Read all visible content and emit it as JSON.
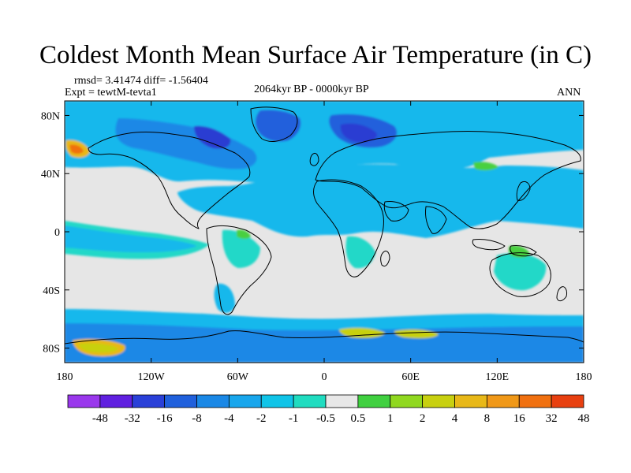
{
  "title": "Coldest Month Mean Surface Air Temperature (in C)",
  "stats": "rmsd= 3.41474 diff= -1.56404",
  "expt": "Expt = tewtM-tevta1",
  "period": "2064kyr BP - 0000kyr BP",
  "season": "ANN",
  "lat_ticks": [
    "80N",
    "40N",
    "0",
    "40S",
    "80S"
  ],
  "lat_values": [
    80,
    40,
    0,
    -40,
    -80
  ],
  "lon_ticks": [
    "180",
    "120W",
    "60W",
    "0",
    "60E",
    "120E",
    "180"
  ],
  "lon_values": [
    -180,
    -120,
    -60,
    0,
    60,
    120,
    180
  ],
  "lat_range": [
    -90,
    90
  ],
  "lon_range": [
    -180,
    180
  ],
  "colorbar": {
    "labels": [
      "-48",
      "-32",
      "-16",
      "-8",
      "-4",
      "-2",
      "-1",
      "-0.5",
      "0.5",
      "1",
      "2",
      "4",
      "8",
      "16",
      "32",
      "48"
    ],
    "colors": [
      "#9a38ec",
      "#6020e0",
      "#2a40d8",
      "#2060dc",
      "#1a88e6",
      "#18a6ec",
      "#10c4e8",
      "#20dcc0",
      "#e8e8e8",
      "#40d040",
      "#90d820",
      "#c8d010",
      "#e8b818",
      "#f09818",
      "#f07010",
      "#e84010"
    ]
  },
  "colors": {
    "nochange": "#e6e6e6",
    "cool_light": "#20d8c8",
    "cool_mid": "#18b8ec",
    "cool_deep": "#1a88e6",
    "cool_strong": "#2060dc",
    "cool_extreme": "#2a3cd2",
    "warm_light": "#48d040",
    "warm_mid": "#c8d010",
    "warm_strong": "#e8b818",
    "warm_extreme": "#f07010"
  }
}
